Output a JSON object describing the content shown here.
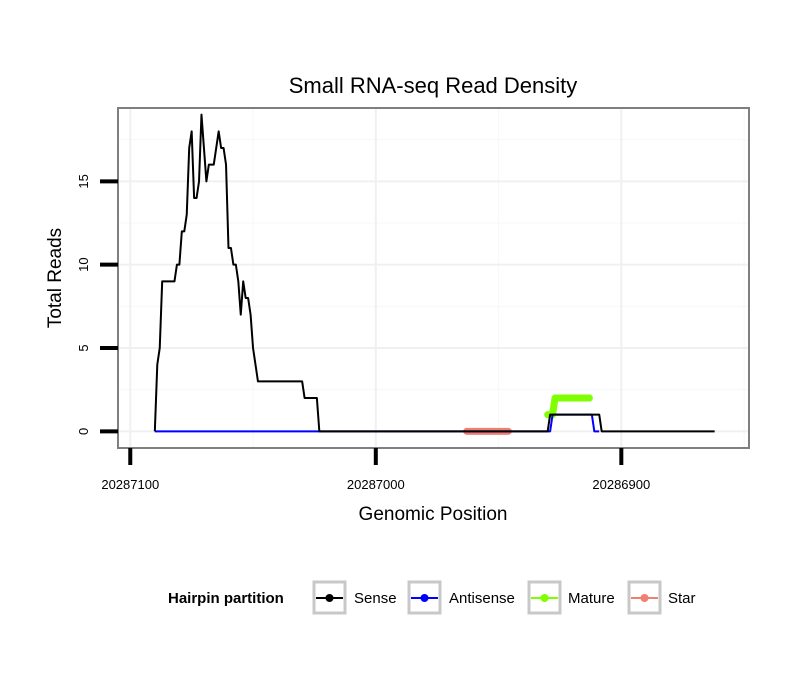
{
  "chart_data": {
    "type": "line",
    "title": "Small RNA-seq Read Density",
    "xlabel": "Genomic Position",
    "ylabel": "Total Reads",
    "x_reversed": true,
    "xlim": [
      20287105,
      20286848
    ],
    "ylim": [
      -1,
      19.4
    ],
    "x_ticks": [
      {
        "value": 20287100,
        "label": "20287100"
      },
      {
        "value": 20287000,
        "label": "20287000"
      },
      {
        "value": 20286900,
        "label": "20286900"
      }
    ],
    "y_ticks": [
      {
        "value": 0,
        "label": "0"
      },
      {
        "value": 5,
        "label": "5"
      },
      {
        "value": 10,
        "label": "10"
      },
      {
        "value": 15,
        "label": "15"
      }
    ],
    "grid": true,
    "legend": {
      "title": "Hairpin partition",
      "position": "bottom",
      "entries": [
        "Sense",
        "Antisense",
        "Mature",
        "Star"
      ]
    },
    "series": [
      {
        "name": "Sense",
        "color": "#000000",
        "style": "line",
        "x": [
          20287090,
          20287089,
          20287088,
          20287087,
          20287085,
          20287082,
          20287081,
          20287080,
          20287079,
          20287078,
          20287077,
          20287076,
          20287075,
          20287074,
          20287073,
          20287072,
          20287071,
          20287070,
          20287069,
          20287068,
          20287067,
          20287066,
          20287065,
          20287064,
          20287063,
          20287062,
          20287061,
          20287060,
          20287059,
          20287058,
          20287057,
          20287056,
          20287055,
          20287054,
          20287053,
          20287052,
          20287051,
          20287050,
          20287049,
          20287048,
          20287047,
          20287046,
          20287045,
          20287044,
          20287043,
          20287042,
          20287040,
          20287036,
          20287030,
          20287029,
          20287025,
          20287024,
          20287023,
          20286934,
          20286930,
          20286929,
          20286928,
          20286927,
          20286926,
          20286912,
          20286911,
          20286910,
          20286909,
          20286908,
          20286862
        ],
        "y": [
          0,
          4,
          5,
          9,
          9,
          9,
          10,
          10,
          12,
          12,
          13,
          17,
          18,
          14,
          14,
          15,
          19,
          17,
          15,
          16,
          16,
          16,
          17,
          18,
          17,
          17,
          16,
          11,
          11,
          10,
          10,
          9,
          7,
          9,
          8,
          8,
          7,
          5,
          4,
          3,
          3,
          3,
          3,
          3,
          3,
          3,
          3,
          3,
          3,
          2,
          2,
          2,
          0,
          0,
          0,
          1,
          1,
          1,
          1,
          1,
          1,
          1,
          1,
          0,
          0
        ]
      },
      {
        "name": "Antisense",
        "color": "#0000ff",
        "style": "line",
        "x": [
          20287090,
          20287023,
          20286934,
          20286929,
          20286928,
          20286927,
          20286926,
          20286913,
          20286912,
          20286911,
          20286910,
          20286909
        ],
        "y": [
          0,
          0,
          0,
          0,
          1,
          1,
          1,
          1,
          1,
          0,
          0,
          0
        ]
      },
      {
        "name": "Mature",
        "color": "#7fff00",
        "style": "thick",
        "x": [
          20286930,
          20286928,
          20286927,
          20286926,
          20286925,
          20286914,
          20286913
        ],
        "y": [
          1,
          1,
          2,
          2,
          2,
          2,
          2
        ]
      },
      {
        "name": "Star",
        "color": "#f08070",
        "style": "thick",
        "x": [
          20286963,
          20286946
        ],
        "y": [
          0,
          0
        ]
      }
    ]
  }
}
